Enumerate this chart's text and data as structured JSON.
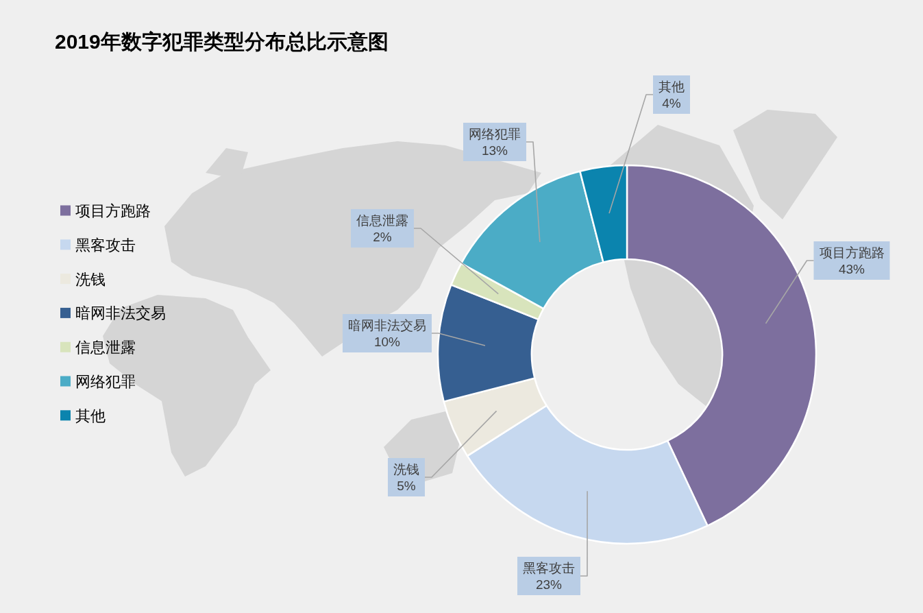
{
  "chart_data": {
    "type": "donut",
    "title": "2019年数字犯罪类型分布总比示意图",
    "categories": [
      "项目方跑路",
      "黑客攻击",
      "洗钱",
      "暗网非法交易",
      "信息泄露",
      "网络犯罪",
      "其他"
    ],
    "values": [
      43,
      23,
      5,
      10,
      2,
      13,
      4
    ],
    "value_labels": [
      "43%",
      "23%",
      "5%",
      "10%",
      "2%",
      "13%",
      "4%"
    ],
    "colors": [
      "#7d6f9e",
      "#c6d8ef",
      "#ece9df",
      "#365f91",
      "#d8e4bc",
      "#4bacc6",
      "#0b84ae"
    ],
    "legend": "left"
  }
}
